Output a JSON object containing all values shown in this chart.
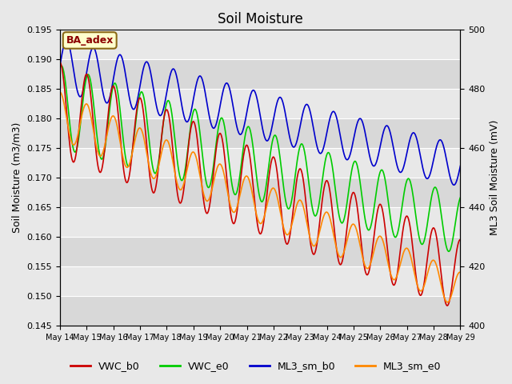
{
  "title": "Soil Moisture",
  "ylabel_left": "Soil Moisture (m3/m3)",
  "ylabel_right": "ML3 Soil Moisture (mV)",
  "ylim_left": [
    0.145,
    0.195
  ],
  "ylim_right": [
    400,
    500
  ],
  "annotation_text": "BA_adex",
  "annotation_bbox_facecolor": "#ffffcc",
  "annotation_bbox_edgecolor": "#8B6914",
  "annotation_text_color": "#8B0000",
  "bg_light": "#e8e8e8",
  "bg_dark": "#d8d8d8",
  "line_colors": {
    "VWC_b0": "#cc0000",
    "VWC_e0": "#00cc00",
    "ML3_sm_b0": "#0000cc",
    "ML3_sm_e0": "#ff8800"
  },
  "figsize": [
    6.4,
    4.8
  ],
  "dpi": 100
}
